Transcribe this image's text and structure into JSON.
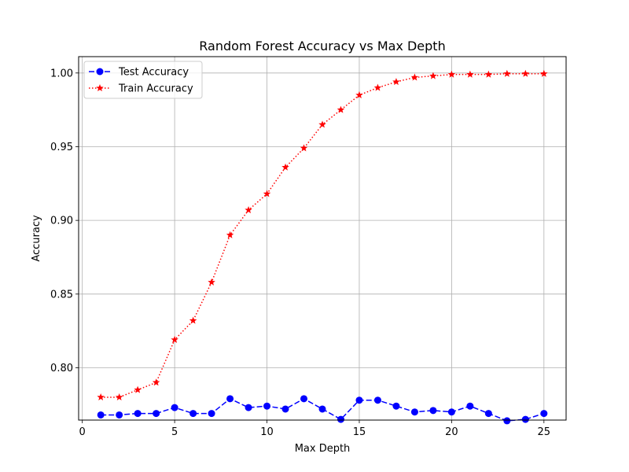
{
  "chart_data": {
    "type": "line",
    "title": "Random Forest Accuracy vs Max Depth",
    "xlabel": "Max Depth",
    "ylabel": "Accuracy",
    "xlim": [
      -0.2,
      26.2
    ],
    "ylim": [
      0.7645,
      1.0111
    ],
    "x_ticks": [
      0,
      5,
      10,
      15,
      20,
      25
    ],
    "y_ticks": [
      0.8,
      0.85,
      0.9,
      0.95,
      1.0
    ],
    "y_tick_labels": [
      "0.80",
      "0.85",
      "0.90",
      "0.95",
      "1.00"
    ],
    "grid": true,
    "legend_position": "upper-left",
    "x": [
      1,
      2,
      3,
      4,
      5,
      6,
      7,
      8,
      9,
      10,
      11,
      12,
      13,
      14,
      15,
      16,
      17,
      18,
      19,
      20,
      21,
      22,
      23,
      24,
      25
    ],
    "series": [
      {
        "name": "Test Accuracy",
        "color": "#0000ff",
        "linestyle": "dashed",
        "marker": "circle",
        "values": [
          0.768,
          0.768,
          0.769,
          0.769,
          0.773,
          0.769,
          0.769,
          0.779,
          0.773,
          0.774,
          0.772,
          0.779,
          0.772,
          0.765,
          0.778,
          0.778,
          0.774,
          0.77,
          0.771,
          0.77,
          0.774,
          0.769,
          0.764,
          0.765,
          0.769
        ]
      },
      {
        "name": "Train Accuracy",
        "color": "#ff0000",
        "linestyle": "dotted",
        "marker": "star",
        "values": [
          0.78,
          0.78,
          0.785,
          0.79,
          0.819,
          0.832,
          0.858,
          0.89,
          0.907,
          0.918,
          0.936,
          0.949,
          0.965,
          0.975,
          0.985,
          0.99,
          0.994,
          0.997,
          0.998,
          0.999,
          0.999,
          0.999,
          0.9995,
          0.9995,
          0.9995
        ]
      }
    ]
  }
}
